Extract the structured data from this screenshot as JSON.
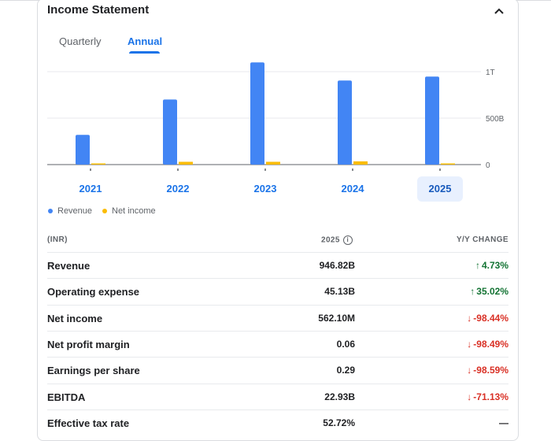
{
  "header": {
    "title": "Income Statement",
    "collapse_icon": "chevron-up-icon"
  },
  "tabs": [
    {
      "label": "Quarterly",
      "active": false
    },
    {
      "label": "Annual",
      "active": true
    }
  ],
  "chart_data": {
    "type": "bar",
    "categories": [
      "2021",
      "2022",
      "2023",
      "2024",
      "2025"
    ],
    "selected_category": "2025",
    "series": [
      {
        "name": "Revenue",
        "color": "#4285f4",
        "values": [
          320,
          700,
          1100,
          905,
          947
        ]
      },
      {
        "name": "Net income",
        "color": "#fbbc04",
        "values": [
          5,
          30,
          30,
          35,
          0.56
        ]
      }
    ],
    "y_ticks": [
      {
        "value": 0,
        "label": "0"
      },
      {
        "value": 500,
        "label": "500B"
      },
      {
        "value": 1000,
        "label": "1T"
      }
    ],
    "ylim": [
      0,
      1000
    ],
    "units": "B",
    "grid": true,
    "legend_position": "bottom-left"
  },
  "legend": [
    {
      "label": "Revenue",
      "color": "#4285f4"
    },
    {
      "label": "Net income",
      "color": "#fbbc04"
    }
  ],
  "table": {
    "currency_label": "(INR)",
    "year_label": "2025",
    "change_label": "Y/Y CHANGE",
    "rows": [
      {
        "label": "Revenue",
        "value": "946.82B",
        "change": "4.73%",
        "direction": "up"
      },
      {
        "label": "Operating expense",
        "value": "45.13B",
        "change": "35.02%",
        "direction": "up"
      },
      {
        "label": "Net income",
        "value": "562.10M",
        "change": "-98.44%",
        "direction": "down"
      },
      {
        "label": "Net profit margin",
        "value": "0.06",
        "change": "-98.49%",
        "direction": "down"
      },
      {
        "label": "Earnings per share",
        "value": "0.29",
        "change": "-98.59%",
        "direction": "down"
      },
      {
        "label": "EBITDA",
        "value": "22.93B",
        "change": "-71.13%",
        "direction": "down"
      },
      {
        "label": "Effective tax rate",
        "value": "52.72%",
        "change": "—",
        "direction": "flat"
      }
    ]
  }
}
